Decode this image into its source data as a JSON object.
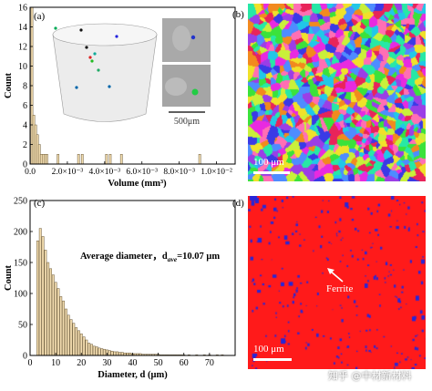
{
  "chart_data": [
    {
      "panel": "(a)",
      "type": "bar",
      "xlabel": "Volume (mm³)",
      "ylabel": "Count",
      "xlim": [
        0,
        0.011
      ],
      "ylim": [
        0,
        16
      ],
      "x_ticks": [
        "0.0",
        "2.0×10⁻³",
        "4.0×10⁻³",
        "6.0×10⁻³",
        "8.0×10⁻³",
        "1.0×10⁻²"
      ],
      "x_tick_values": [
        0,
        0.002,
        0.004,
        0.006,
        0.008,
        0.01
      ],
      "y_ticks": [
        0,
        2,
        4,
        6,
        8,
        10,
        12,
        14,
        16
      ],
      "x": [
        0.0001,
        0.0002,
        0.0003,
        0.0004,
        0.0005,
        0.0006,
        0.0007,
        0.0008,
        0.0009,
        0.0015,
        0.0026,
        0.0028,
        0.0041,
        0.0043,
        0.0049,
        0.0091
      ],
      "values": [
        16,
        5,
        4,
        3,
        2,
        1,
        1,
        1,
        1,
        1,
        1,
        1,
        1,
        1,
        1,
        1
      ],
      "inset_scale": "500μm"
    },
    {
      "panel": "(c)",
      "type": "bar",
      "xlabel": "Diameter, d (μm)",
      "ylabel": "Count",
      "xlim": [
        0,
        80
      ],
      "ylim": [
        0,
        250
      ],
      "x_ticks": [
        0,
        10,
        20,
        30,
        40,
        50,
        60,
        70
      ],
      "y_ticks": [
        0,
        50,
        100,
        150,
        200,
        250
      ],
      "annotation": "Average diameter，d",
      "annotation_sub": "ave",
      "annotation_value": "=10.07 μm",
      "x": [
        3,
        4,
        5,
        6,
        7,
        8,
        9,
        10,
        11,
        12,
        13,
        14,
        15,
        16,
        17,
        18,
        19,
        20,
        21,
        22,
        23,
        24,
        25,
        26,
        27,
        28,
        29,
        30,
        31,
        32,
        33,
        34,
        35,
        36,
        37,
        38,
        39,
        40,
        41,
        42,
        43,
        44,
        45,
        46,
        47,
        48,
        49,
        50,
        51,
        52,
        53,
        54,
        55,
        56,
        57,
        58,
        59,
        60,
        62,
        65,
        68,
        70,
        73,
        75
      ],
      "values": [
        185,
        205,
        192,
        170,
        150,
        140,
        130,
        118,
        108,
        95,
        88,
        75,
        65,
        58,
        52,
        45,
        40,
        35,
        30,
        25,
        20,
        18,
        15,
        14,
        12,
        11,
        10,
        9,
        8,
        7,
        6,
        6,
        5,
        5,
        4,
        4,
        4,
        3,
        3,
        3,
        3,
        2,
        2,
        2,
        2,
        2,
        2,
        2,
        1,
        1,
        1,
        1,
        1,
        1,
        1,
        1,
        1,
        1,
        1,
        1,
        1,
        1,
        1,
        1
      ]
    }
  ],
  "panels": {
    "a": "(a)",
    "b": "(b)",
    "c": "(c)",
    "d": "(d)"
  },
  "map_b": {
    "scale": "100 μm"
  },
  "map_d": {
    "scale": "100 μm",
    "arrow_label": "Ferrite"
  },
  "watermark": "知乎 @中材新材料",
  "colors": {
    "bar_fill": "#f2dcaf",
    "bar_edge": "#6b5a3a",
    "phase_red": "#ff1a1a",
    "phase_blue": "#2626d9"
  }
}
